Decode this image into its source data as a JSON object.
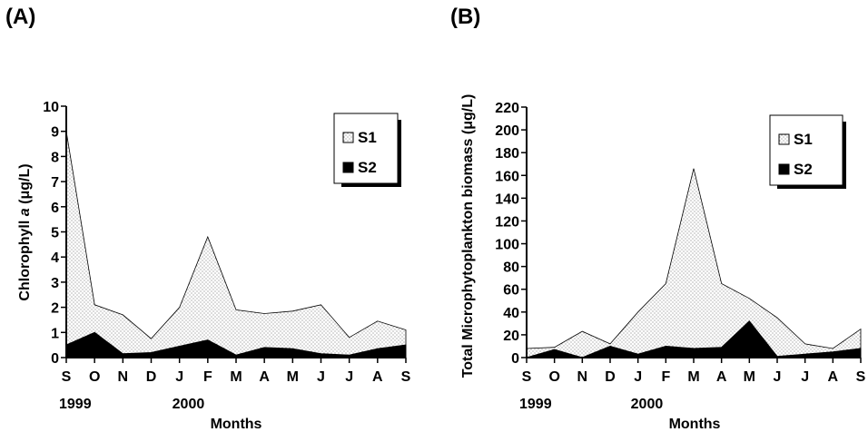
{
  "panels": [
    {
      "label": "(A)",
      "chart_data": {
        "type": "area",
        "title": "",
        "xlabel": "Months",
        "ylabel": "Chlorophyll a (μg/L)",
        "ylabel_parts": [
          "Chlorophyll ",
          "a",
          " (μg/L)"
        ],
        "x": [
          "S",
          "O",
          "N",
          "D",
          "J",
          "F",
          "M",
          "A",
          "M",
          "J",
          "J",
          "A",
          "S"
        ],
        "year_labels": [
          "1999",
          "2000"
        ],
        "year_label_index": [
          0,
          4
        ],
        "ylim": [
          0,
          10
        ],
        "yticks": [
          0,
          1,
          2,
          3,
          4,
          5,
          6,
          7,
          8,
          9,
          10
        ],
        "grid": false,
        "legend": "top-right",
        "series": [
          {
            "name": "S1",
            "fill": "dotted",
            "values": [
              9.0,
              2.1,
              1.7,
              0.75,
              2.0,
              4.8,
              1.9,
              1.75,
              1.85,
              2.1,
              0.8,
              1.45,
              1.1
            ]
          },
          {
            "name": "S2",
            "fill": "#000000",
            "values": [
              0.5,
              1.0,
              0.15,
              0.2,
              0.45,
              0.7,
              0.1,
              0.4,
              0.35,
              0.15,
              0.1,
              0.35,
              0.5
            ]
          }
        ]
      }
    },
    {
      "label": "(B)",
      "chart_data": {
        "type": "area",
        "title": "",
        "xlabel": "Months",
        "ylabel": "Total Microphytoplankton biomass (μg/L)",
        "x": [
          "S",
          "O",
          "N",
          "D",
          "J",
          "F",
          "M",
          "A",
          "M",
          "J",
          "J",
          "A",
          "S"
        ],
        "year_labels": [
          "1999",
          "2000"
        ],
        "year_label_index": [
          0,
          4
        ],
        "ylim": [
          0,
          220
        ],
        "yticks": [
          0,
          20,
          40,
          60,
          80,
          100,
          120,
          140,
          160,
          180,
          200,
          220
        ],
        "grid": false,
        "legend": "top-right",
        "series": [
          {
            "name": "S1",
            "fill": "dotted",
            "values": [
              8,
              9,
              23,
              12,
              40,
              65,
              166,
              65,
              52,
              35,
              12,
              8,
              25
            ]
          },
          {
            "name": "S2",
            "fill": "#000000",
            "values": [
              0,
              7,
              0,
              10,
              3,
              10,
              8,
              9,
              32,
              1,
              3,
              5,
              8
            ]
          }
        ]
      }
    }
  ]
}
